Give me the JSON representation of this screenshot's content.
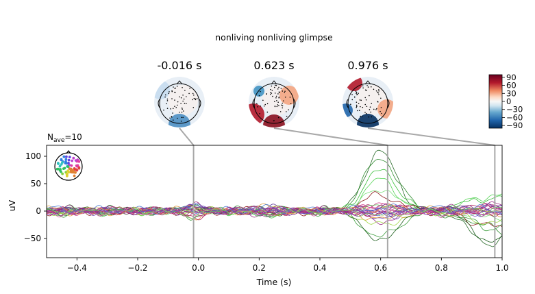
{
  "figure": {
    "title": "nonliving nonliving glimpse"
  },
  "chart_data": {
    "type": "line",
    "title": "nonliving nonliving glimpse",
    "nave_label": "N",
    "nave_sub": "ave",
    "nave_value": "=10",
    "xlabel": "Time (s)",
    "ylabel": "uV",
    "xlim": [
      -0.5,
      1.0
    ],
    "ylim": [
      -85,
      120
    ],
    "xticks": [
      -0.4,
      -0.2,
      0.0,
      0.2,
      0.4,
      0.6,
      0.8,
      1.0
    ],
    "xtick_labels": [
      "−0.4",
      "−0.2",
      "0.0",
      "0.2",
      "0.4",
      "0.6",
      "0.8",
      "1.0"
    ],
    "yticks": [
      100,
      50,
      0,
      -50
    ],
    "ytick_labels": [
      "100",
      "50",
      "0",
      "−50"
    ],
    "grid": false,
    "topomap_times": [
      -0.016,
      0.623,
      0.976
    ],
    "topomap_labels": [
      "-0.016 s",
      "0.623 s",
      "0.976 s"
    ],
    "colorbar": {
      "colormap": "RdBu_r",
      "ticks": [
        90,
        60,
        30,
        0,
        -30,
        -60,
        -90
      ],
      "tick_labels": [
        "90",
        "60",
        "30",
        "0",
        "−30",
        "−60",
        "−90"
      ],
      "range": [
        -100,
        100
      ]
    },
    "series": [
      {
        "color": "#2a6b2a",
        "peak": 110,
        "tmin": 0.45,
        "tmax": 0.78,
        "late": -70
      },
      {
        "color": "#2e8b2e",
        "peak": 95,
        "tmin": 0.46,
        "tmax": 0.78,
        "late": -55
      },
      {
        "color": "#3cbf3c",
        "peak": 72,
        "tmin": 0.47,
        "tmax": 0.78,
        "late": 30
      },
      {
        "color": "#55d455",
        "peak": 60,
        "tmin": 0.47,
        "tmax": 0.77,
        "late": 50
      },
      {
        "color": "#7be07b",
        "peak": 40,
        "tmin": 0.48,
        "tmax": 0.77,
        "late": -20
      },
      {
        "color": "#8b1a1a",
        "peak": 30,
        "tmin": 0.48,
        "tmax": 0.77,
        "late": -45
      },
      {
        "color": "#c0307a",
        "peak": 10,
        "tmin": 0.5,
        "tmax": 0.76,
        "late": 10
      },
      {
        "color": "#9b2d86",
        "peak": -20,
        "tmin": 0.5,
        "tmax": 0.76,
        "late": 8
      },
      {
        "color": "#6a3fb0",
        "peak": -15,
        "tmin": 0.5,
        "tmax": 0.76,
        "late": 5
      },
      {
        "color": "#4a6fd6",
        "peak": -10,
        "tmin": 0.5,
        "tmax": 0.76,
        "late": -15
      },
      {
        "color": "#e69b3a",
        "peak": -12,
        "tmin": 0.5,
        "tmax": 0.76,
        "late": 4
      },
      {
        "color": "#a0d646",
        "peak": -25,
        "tmin": 0.48,
        "tmax": 0.77,
        "late": -25
      },
      {
        "color": "#3a9c3a",
        "peak": -45,
        "tmin": 0.48,
        "tmax": 0.77,
        "late": -30
      },
      {
        "color": "#1d5e1d",
        "peak": -58,
        "tmin": 0.47,
        "tmax": 0.78,
        "late": -75
      },
      {
        "color": "#d03c8a",
        "peak": 18,
        "tmin": 0.5,
        "tmax": 0.76,
        "late": 12
      },
      {
        "color": "#b3205c",
        "peak": -8,
        "tmin": 0.5,
        "tmax": 0.76,
        "late": 6
      }
    ]
  }
}
